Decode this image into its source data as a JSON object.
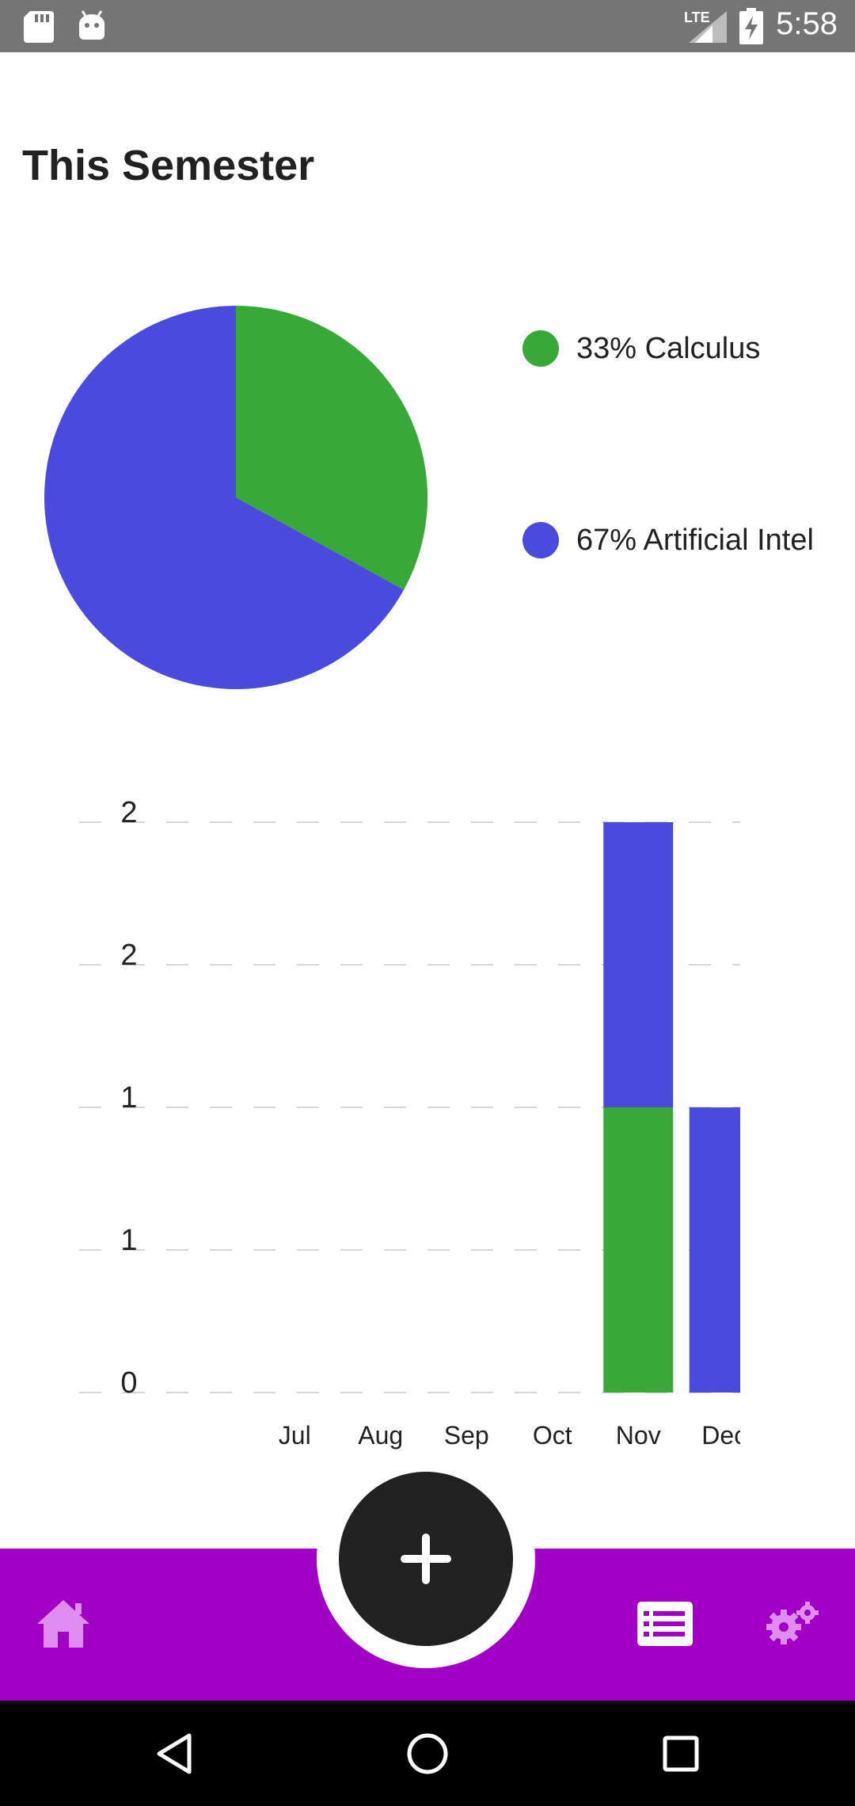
{
  "status_bar": {
    "time": "5:58",
    "network": "LTE",
    "icons": [
      "sd-card-icon",
      "android-icon",
      "lte-signal-icon",
      "battery-charging-icon"
    ]
  },
  "page": {
    "title": "This Semester"
  },
  "legend": [
    {
      "label": "33% Calculus",
      "color": "#38a838"
    },
    {
      "label": "67% Artificial Intel",
      "color": "#4a4adc"
    }
  ],
  "chart_data": [
    {
      "type": "pie",
      "slices": [
        {
          "name": "Calculus",
          "value": 33,
          "color": "#38a838"
        },
        {
          "name": "Artificial Intelligence",
          "value": 67,
          "color": "#4a4adc"
        }
      ]
    },
    {
      "type": "bar",
      "stacked": true,
      "categories": [
        "Jul",
        "Aug",
        "Sep",
        "Oct",
        "Nov",
        "Dec"
      ],
      "series": [
        {
          "name": "Calculus",
          "color": "#38a838",
          "values": [
            0,
            0,
            0,
            0,
            1,
            0
          ]
        },
        {
          "name": "Artificial Intelligence",
          "color": "#4a4adc",
          "values": [
            0,
            0,
            0,
            0,
            1,
            1
          ]
        }
      ],
      "ylim": [
        0,
        2
      ],
      "ytick_values": [
        0,
        0.5,
        1,
        1.5,
        2
      ],
      "ytick_labels": [
        "0",
        "1",
        "1",
        "2",
        "2"
      ],
      "grid": true
    }
  ],
  "bottom_nav": {
    "items": [
      "home-icon",
      "add-icon",
      "list-icon",
      "settings-icon"
    ],
    "background": "#a100c4",
    "icon_color": "#e08cf0",
    "fab_color": "#212121"
  }
}
